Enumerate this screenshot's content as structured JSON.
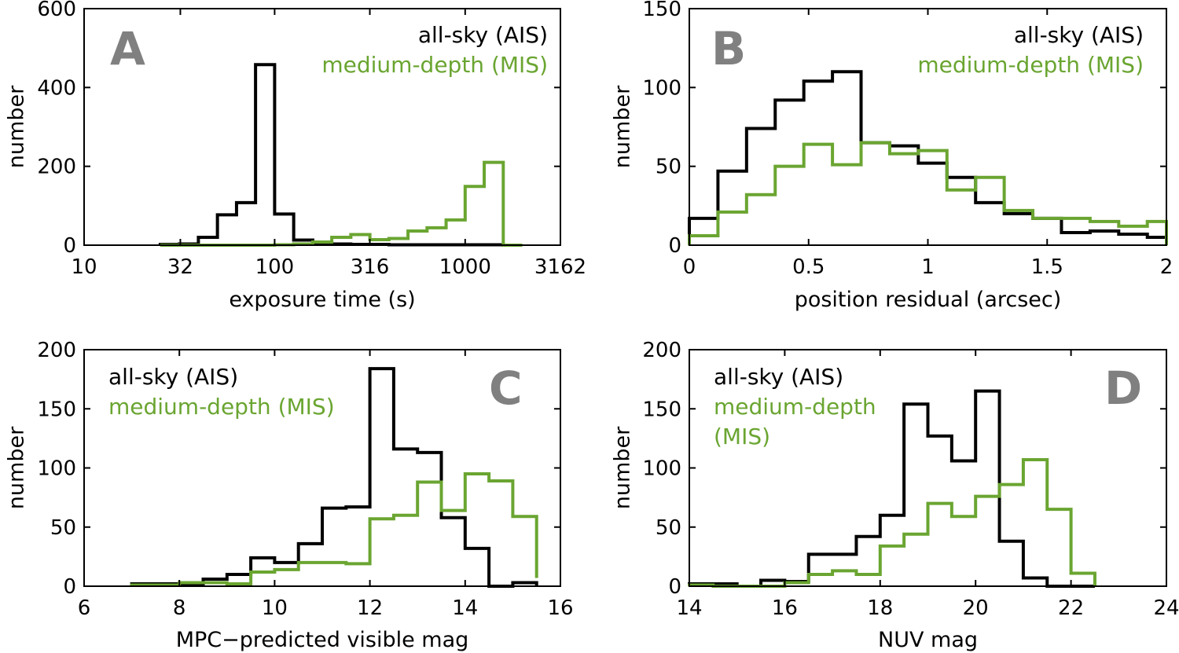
{
  "colors": {
    "ais": "#000000",
    "mis": "#6aa531",
    "panel_letter": "#808080"
  },
  "chart_data": [
    {
      "id": "A",
      "type": "histogram",
      "panel_label": "A",
      "xscale": "log",
      "xlabel": "exposure time (s)",
      "ylabel": "number",
      "xlim": [
        10,
        3162
      ],
      "ylim": [
        0,
        600
      ],
      "xticks": [
        10,
        32,
        100,
        316,
        1000,
        3162
      ],
      "xtick_labels": [
        "10",
        "32",
        "100",
        "316",
        "1000",
        "3162"
      ],
      "yticks": [
        0,
        200,
        400,
        600
      ],
      "ytick_labels": [
        "0",
        "200",
        "400",
        "600"
      ],
      "legend_position": "top-right",
      "series": [
        {
          "name": "all-sky (AIS)",
          "color_key": "ais",
          "edges": [
            25.1,
            31.6,
            39.8,
            50.1,
            63.1,
            79.4,
            100,
            125.9,
            158.5,
            199.5,
            251.2,
            316.2,
            398.1,
            501.2,
            631,
            794.3,
            1000,
            1258.9,
            1584.9,
            1995.3
          ],
          "values": [
            2,
            3,
            20,
            77,
            108,
            458,
            79,
            13,
            5,
            3,
            2,
            2,
            1,
            1,
            1,
            1,
            1,
            1,
            0
          ]
        },
        {
          "name": "medium-depth (MIS)",
          "color_key": "mis",
          "edges": [
            25.1,
            31.6,
            39.8,
            50.1,
            63.1,
            79.4,
            100,
            125.9,
            158.5,
            199.5,
            251.2,
            316.2,
            398.1,
            501.2,
            631,
            794.3,
            1000,
            1258.9,
            1584.9,
            1995.3
          ],
          "values": [
            0,
            0,
            0,
            0,
            0,
            0,
            1,
            3,
            8,
            20,
            27,
            14,
            17,
            36,
            44,
            64,
            149,
            210,
            0
          ]
        }
      ]
    },
    {
      "id": "B",
      "type": "histogram",
      "panel_label": "B",
      "xscale": "linear",
      "xlabel": "position residual (arcsec)",
      "ylabel": "number",
      "xlim": [
        0,
        2
      ],
      "ylim": [
        0,
        150
      ],
      "xticks": [
        0,
        0.5,
        1,
        1.5,
        2
      ],
      "xtick_labels": [
        "0",
        "0.5",
        "1",
        "1.5",
        "2"
      ],
      "yticks": [
        0,
        50,
        100,
        150
      ],
      "ytick_labels": [
        "0",
        "50",
        "100",
        "150"
      ],
      "legend_position": "top-right",
      "series": [
        {
          "name": "all-sky (AIS)",
          "color_key": "ais",
          "edges": [
            0,
            0.12,
            0.24,
            0.36,
            0.48,
            0.6,
            0.72,
            0.84,
            0.96,
            1.08,
            1.2,
            1.32,
            1.44,
            1.56,
            1.68,
            1.8,
            1.92,
            2.0
          ],
          "values": [
            17,
            47,
            74,
            92,
            104,
            110,
            65,
            63,
            52,
            43,
            27,
            20,
            17,
            8,
            9,
            7,
            5
          ]
        },
        {
          "name": "medium-depth (MIS)",
          "color_key": "mis",
          "edges": [
            0,
            0.12,
            0.24,
            0.36,
            0.48,
            0.6,
            0.72,
            0.84,
            0.96,
            1.08,
            1.2,
            1.32,
            1.44,
            1.56,
            1.68,
            1.8,
            1.92,
            2.0
          ],
          "values": [
            6,
            21,
            32,
            50,
            64,
            51,
            65,
            58,
            60,
            35,
            43,
            22,
            17,
            17,
            15,
            12,
            15
          ]
        }
      ]
    },
    {
      "id": "C",
      "type": "histogram",
      "panel_label": "C",
      "xscale": "linear",
      "xlabel": "MPC−predicted visible mag",
      "ylabel": "number",
      "xlim": [
        6,
        16
      ],
      "ylim": [
        0,
        200
      ],
      "xticks": [
        6,
        8,
        10,
        12,
        14,
        16
      ],
      "xtick_labels": [
        "6",
        "8",
        "10",
        "12",
        "14",
        "16"
      ],
      "yticks": [
        0,
        50,
        100,
        150,
        200
      ],
      "ytick_labels": [
        "0",
        "50",
        "100",
        "150",
        "200"
      ],
      "legend_position": "top-left",
      "series": [
        {
          "name": "all-sky (AIS)",
          "color_key": "ais",
          "edges": [
            7,
            7.5,
            8,
            8.5,
            9,
            9.5,
            10,
            10.5,
            11,
            11.5,
            12,
            12.5,
            13,
            13.5,
            14,
            14.5,
            15,
            15.5
          ],
          "values": [
            2,
            2,
            2,
            6,
            10,
            24,
            20,
            36,
            66,
            67,
            184,
            116,
            113,
            58,
            32,
            0,
            3
          ]
        },
        {
          "name": "medium-depth (MIS)",
          "color_key": "mis",
          "edges": [
            7,
            7.5,
            8,
            8.5,
            9,
            9.5,
            10,
            10.5,
            11,
            11.5,
            12,
            12.5,
            13,
            13.5,
            14,
            14.5,
            15,
            15.5
          ],
          "values": [
            1,
            1,
            3,
            3,
            2,
            12,
            14,
            20,
            20,
            19,
            57,
            60,
            88,
            64,
            95,
            89,
            59,
            7
          ]
        }
      ]
    },
    {
      "id": "D",
      "type": "histogram",
      "panel_label": "D",
      "xscale": "linear",
      "xlabel": "NUV mag",
      "ylabel": "number",
      "xlim": [
        14,
        24
      ],
      "ylim": [
        0,
        200
      ],
      "xticks": [
        14,
        16,
        18,
        20,
        22,
        24
      ],
      "xtick_labels": [
        "14",
        "16",
        "18",
        "20",
        "22",
        "24"
      ],
      "yticks": [
        0,
        50,
        100,
        150,
        200
      ],
      "ytick_labels": [
        "0",
        "50",
        "100",
        "150",
        "200"
      ],
      "legend_position": "top-left",
      "series": [
        {
          "name": "all-sky (AIS)",
          "color_key": "ais",
          "edges": [
            14,
            14.5,
            15,
            15.5,
            16,
            16.5,
            17,
            17.5,
            18,
            18.5,
            19,
            19.5,
            20,
            20.5,
            21,
            21.5,
            22,
            22.5
          ],
          "values": [
            2,
            2,
            0,
            5,
            4,
            27,
            27,
            42,
            60,
            154,
            127,
            106,
            165,
            38,
            7,
            0,
            0
          ]
        },
        {
          "name": "medium-depth (MIS)",
          "color_key": "mis",
          "edges": [
            14,
            14.5,
            15,
            15.5,
            16,
            16.5,
            17,
            17.5,
            18,
            18.5,
            19,
            19.5,
            20,
            20.5,
            21,
            21.5,
            22,
            22.5
          ],
          "values": [
            1,
            0,
            0,
            0,
            3,
            10,
            13,
            10,
            34,
            44,
            70,
            59,
            76,
            86,
            107,
            65,
            11
          ]
        }
      ]
    }
  ],
  "legend_lines": {
    "A": [
      "all-sky (AIS)",
      "medium-depth (MIS)"
    ],
    "B": [
      "all-sky (AIS)",
      "medium-depth (MIS)"
    ],
    "C": [
      "all-sky (AIS)",
      "medium-depth (MIS)"
    ],
    "D": [
      "all-sky (AIS)",
      "medium-depth",
      "(MIS)"
    ]
  }
}
